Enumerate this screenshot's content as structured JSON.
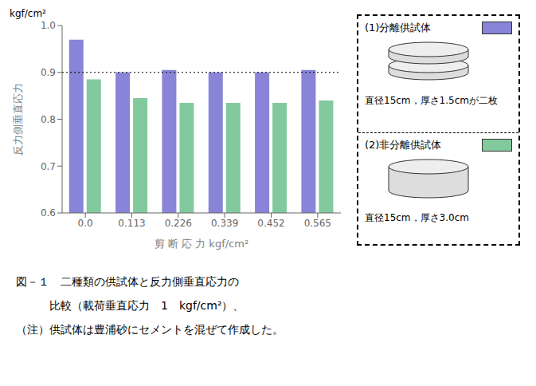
{
  "chart_data": {
    "type": "bar",
    "categories": [
      "0.0",
      "0.113",
      "0.226",
      "0.339",
      "0.452",
      "0.565"
    ],
    "series": [
      {
        "name": "(1)分離供試体",
        "color": "#8884d8",
        "values": [
          0.97,
          0.9,
          0.905,
          0.9,
          0.9,
          0.905
        ],
        "description": "直径15cm，厚さ1.5cmが二枚"
      },
      {
        "name": "(2)非分離供試体",
        "color": "#82ca9d",
        "values": [
          0.885,
          0.845,
          0.835,
          0.835,
          0.835,
          0.84
        ],
        "description": "直径15cm，厚さ3.0cm"
      }
    ],
    "xlabel": "剪 断 応 力   kgf/cm²",
    "ylabel": "反力側垂直応力",
    "ylabel_unit": "kgf/cm²",
    "ylim": [
      0.6,
      1.0
    ],
    "yticks": [
      0.6,
      0.7,
      0.8,
      0.9,
      {
        "value": 1.0,
        "label": "1.0"
      }
    ],
    "reference_line": {
      "y": 0.9,
      "line_style": "dotted"
    },
    "grid": false,
    "legend": "right",
    "caption": [
      "図－１　二種類の供試体と反力側垂直応力の",
      "　　　比較（載荷垂直応力　1　kgf/cm²）、",
      "（注）供試体は豊浦砂にセメントを混ぜて作成した。"
    ]
  }
}
